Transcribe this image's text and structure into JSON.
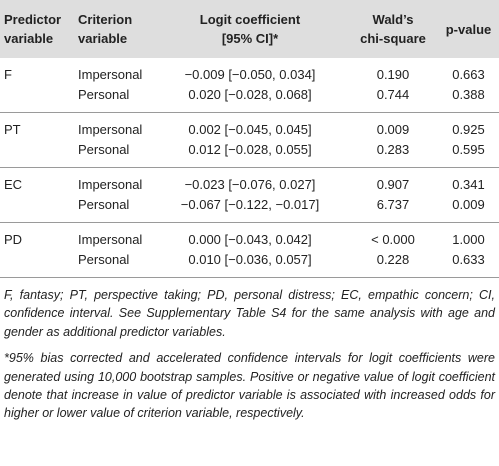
{
  "table": {
    "header": [
      [
        "Predictor",
        "variable"
      ],
      [
        "Criterion",
        "variable"
      ],
      [
        "Logit coefficient",
        "[95% CI]*"
      ],
      [
        "Wald’s",
        "chi-square"
      ],
      [
        "p-value"
      ]
    ],
    "groups": [
      {
        "predictor": "F",
        "rows": [
          [
            "Impersonal",
            "−0.009 [−0.050, 0.034]",
            "0.190",
            "0.663"
          ],
          [
            "Personal",
            "0.020 [−0.028, 0.068]",
            "0.744",
            "0.388"
          ]
        ]
      },
      {
        "predictor": "PT",
        "rows": [
          [
            "Impersonal",
            "0.002 [−0.045, 0.045]",
            "0.009",
            "0.925"
          ],
          [
            "Personal",
            "0.012 [−0.028, 0.055]",
            "0.283",
            "0.595"
          ]
        ]
      },
      {
        "predictor": "EC",
        "rows": [
          [
            "Impersonal",
            "−0.023 [−0.076, 0.027]",
            "0.907",
            "0.341"
          ],
          [
            "Personal",
            "−0.067 [−0.122, −0.017]",
            "6.737",
            "0.009"
          ]
        ]
      },
      {
        "predictor": "PD",
        "rows": [
          [
            "Impersonal",
            "0.000 [−0.043, 0.042]",
            "< 0.000",
            "1.000"
          ],
          [
            "Personal",
            "0.010 [−0.036, 0.057]",
            "0.228",
            "0.633"
          ]
        ]
      }
    ],
    "notes": [
      "F, fantasy; PT, perspective taking; PD, personal distress; EC, empathic concern; CI, confidence interval. See Supplementary Table S4 for the same analysis with age and gender as additional predictor variables.",
      "*95% bias corrected and accelerated confidence intervals for logit coefficients were generated using 10,000 bootstrap samples. Positive or negative value of logit coefficient denote that increase in value of predictor variable is associated with increased odds for higher or lower value of criterion variable, respectively."
    ]
  }
}
